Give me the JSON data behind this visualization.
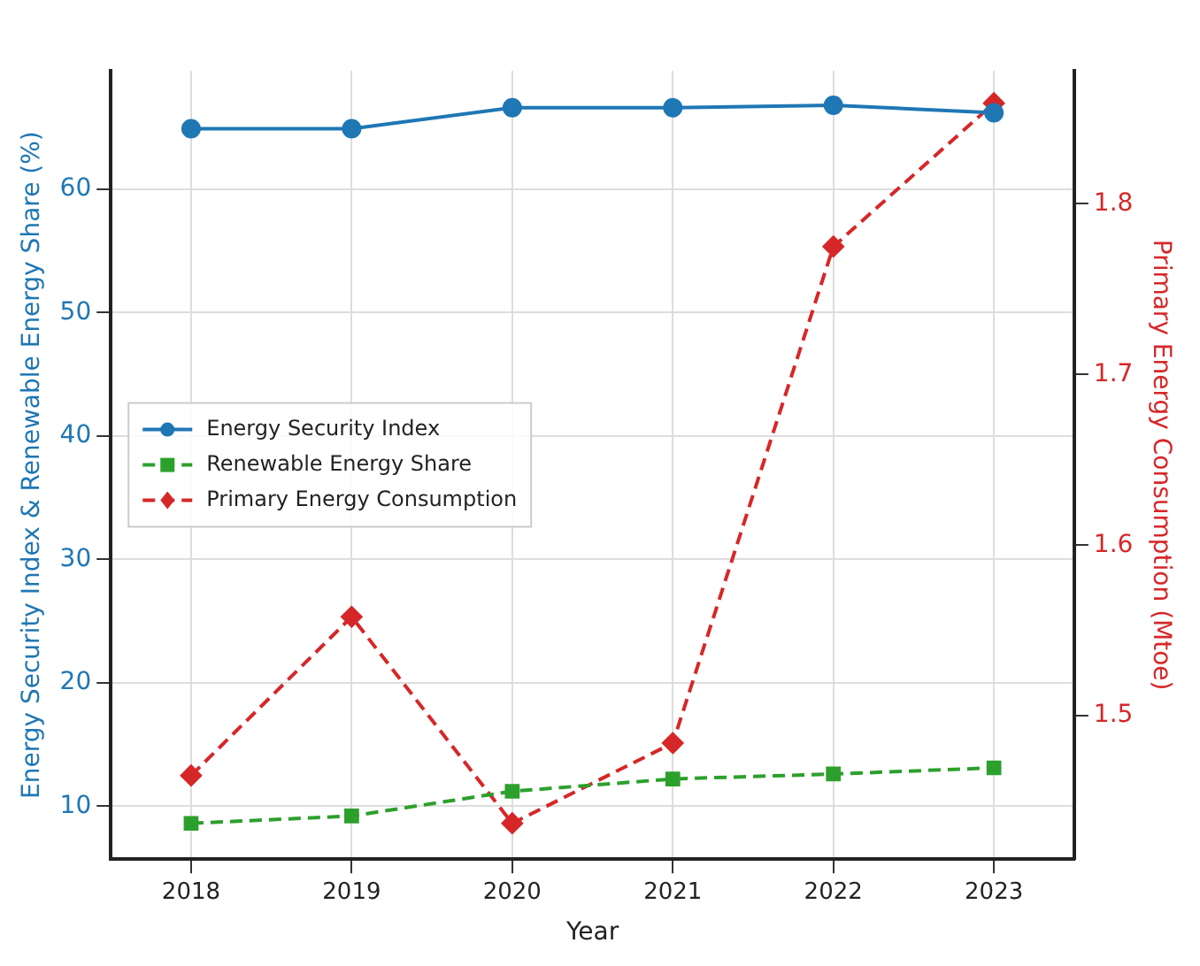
{
  "chart_data": {
    "type": "line",
    "xlabel": "Year",
    "ylabel": "Energy Security Index & Renewable Energy Share (%)",
    "y2label": "Primary Energy Consumption (Mtoe)",
    "categories": [
      "2018",
      "2019",
      "2020",
      "2021",
      "2022",
      "2023"
    ],
    "ylim": [
      5.7,
      69.6
    ],
    "yticks": [
      10,
      20,
      30,
      40,
      50,
      60
    ],
    "y2lim": [
      1.416,
      1.878
    ],
    "y2ticks": [
      1.5,
      1.6,
      1.7,
      1.8
    ],
    "grid": true,
    "legend": "center left",
    "series": [
      {
        "name": "Energy Security Index",
        "color": "#1f77b4",
        "marker": "circle",
        "line_style": "solid",
        "values": [
          64.9,
          64.9,
          66.6,
          66.6,
          66.8,
          66.2
        ]
      },
      {
        "name": "Renewable Energy Share",
        "color": "#2ca02c",
        "marker": "square",
        "line_style": "dashed",
        "values": [
          8.6,
          9.2,
          11.2,
          12.2,
          12.6,
          13.1
        ]
      },
      {
        "name": "Primary Energy Consumption",
        "color": "#d62728",
        "marker": "diamond",
        "line_style": "dashed",
        "axis": "y2",
        "values": [
          1.465,
          1.558,
          1.437,
          1.484,
          1.775,
          1.859
        ]
      }
    ]
  }
}
